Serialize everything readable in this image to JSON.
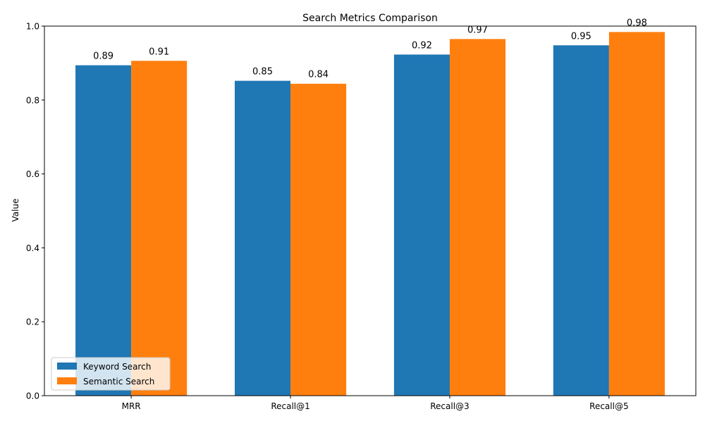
{
  "chart_data": {
    "type": "bar",
    "title": "Search Metrics Comparison",
    "xlabel": "",
    "ylabel": "Value",
    "ylim": [
      0,
      1.0
    ],
    "yticks": [
      0.0,
      0.2,
      0.4,
      0.6,
      0.8,
      1.0
    ],
    "ytick_labels": [
      "0.0",
      "0.2",
      "0.4",
      "0.6",
      "0.8",
      "1.0"
    ],
    "categories": [
      "MRR",
      "Recall@1",
      "Recall@3",
      "Recall@5"
    ],
    "series": [
      {
        "name": "Keyword Search",
        "color": "#1f77b4",
        "values": [
          0.894,
          0.852,
          0.923,
          0.948
        ],
        "labels": [
          "0.89",
          "0.85",
          "0.92",
          "0.95"
        ]
      },
      {
        "name": "Semantic Search",
        "color": "#ff7f0e",
        "values": [
          0.906,
          0.844,
          0.965,
          0.984
        ],
        "labels": [
          "0.91",
          "0.84",
          "0.97",
          "0.98"
        ]
      }
    ],
    "legend": {
      "position": "lower-left"
    },
    "grid": false
  }
}
